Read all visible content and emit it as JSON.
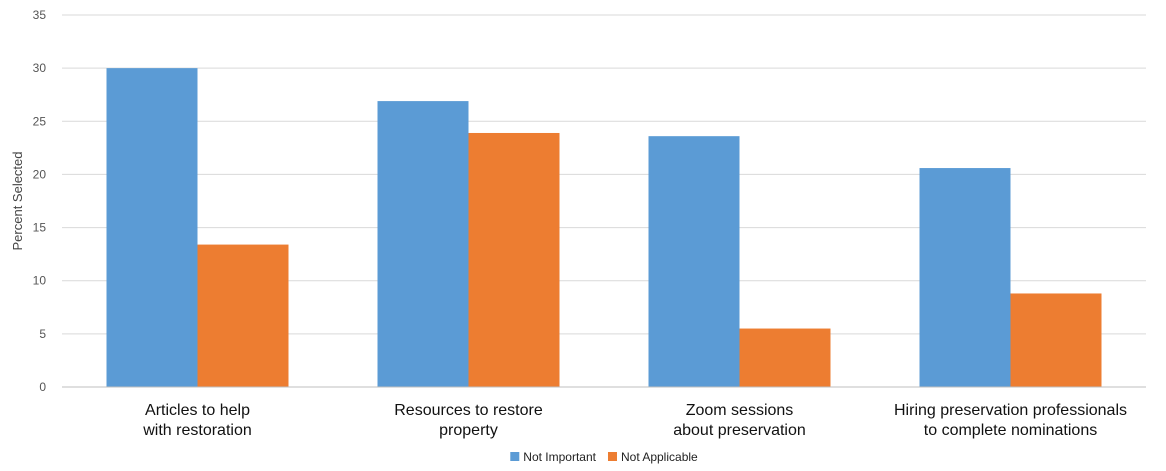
{
  "chart_data": {
    "type": "bar",
    "title": "",
    "xlabel": "",
    "ylabel": "Percent Selected",
    "ylim": [
      0,
      35
    ],
    "yticks": [
      0,
      5,
      10,
      15,
      20,
      25,
      30,
      35
    ],
    "grid": true,
    "legend_position": "bottom",
    "categories": [
      [
        "Articles to help",
        "with restoration"
      ],
      [
        "Resources to restore",
        "property"
      ],
      [
        "Zoom sessions",
        "about preservation"
      ],
      [
        "Hiring preservation professionals",
        "to complete nominations"
      ]
    ],
    "series": [
      {
        "name": "Not Important",
        "color": "#5b9bd5",
        "values": [
          30.0,
          26.9,
          23.6,
          20.6
        ]
      },
      {
        "name": "Not Applicable",
        "color": "#ed7d31",
        "values": [
          13.4,
          23.9,
          5.5,
          8.8
        ]
      }
    ]
  }
}
